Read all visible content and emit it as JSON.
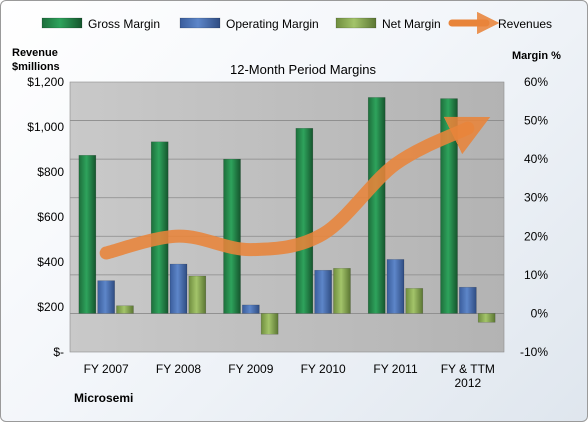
{
  "chart_data": {
    "type": "bar",
    "title": "12-Month Period Margins",
    "company": "Microsemi",
    "left_axis": {
      "label_line1": "Revenue",
      "label_line2": "$millions",
      "ticks": [
        "$-",
        "$200",
        "$400",
        "$600",
        "$800",
        "$1,000",
        "$1,200"
      ],
      "ylim": [
        0,
        1200
      ]
    },
    "right_axis": {
      "label": "Margin %",
      "ticks": [
        "-10%",
        "0%",
        "10%",
        "20%",
        "30%",
        "40%",
        "50%",
        "60%"
      ],
      "ylim": [
        -10,
        60
      ]
    },
    "categories": [
      [
        "FY 2007"
      ],
      [
        "FY 2008"
      ],
      [
        "FY 2009"
      ],
      [
        "FY 2010"
      ],
      [
        "FY 2011"
      ],
      [
        "FY & TTM",
        "2012"
      ]
    ],
    "series": [
      {
        "name": "Gross Margin",
        "kind": "bar",
        "axis": "right",
        "values": [
          41,
          44.5,
          40,
          48,
          56,
          55.7
        ],
        "color": "#1e8a4c"
      },
      {
        "name": "Operating Margin",
        "kind": "bar",
        "axis": "right",
        "values": [
          8.5,
          12.8,
          2.2,
          11.2,
          14,
          6.8
        ],
        "color": "#4a70b5"
      },
      {
        "name": "Net Margin",
        "kind": "bar",
        "axis": "right",
        "values": [
          2,
          9.7,
          -5.4,
          11.7,
          6.5,
          -2.3
        ],
        "color": "#8fb058"
      },
      {
        "name": "Revenues",
        "kind": "line",
        "axis": "left",
        "values": [
          440,
          515,
          455,
          525,
          835,
          995
        ],
        "color": "#e8843a"
      }
    ],
    "legend_position": "top",
    "grid": true
  }
}
